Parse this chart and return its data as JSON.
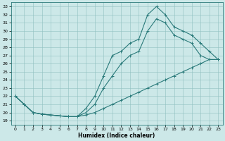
{
  "xlabel": "Humidex (Indice chaleur)",
  "bg_color": "#cce8e8",
  "line_color": "#2a7a7a",
  "xlim": [
    -0.5,
    23.5
  ],
  "ylim": [
    18.5,
    33.5
  ],
  "yticks": [
    19,
    20,
    21,
    22,
    23,
    24,
    25,
    26,
    27,
    28,
    29,
    30,
    31,
    32,
    33
  ],
  "xticks": [
    0,
    1,
    2,
    3,
    4,
    5,
    6,
    7,
    8,
    9,
    10,
    11,
    12,
    13,
    14,
    15,
    16,
    17,
    18,
    19,
    20,
    21,
    22,
    23
  ],
  "curve1_x": [
    0,
    1,
    2,
    3,
    4,
    5,
    6,
    7,
    8,
    9,
    10,
    11,
    12,
    13,
    14,
    15,
    16,
    17,
    18,
    19,
    20,
    21,
    22,
    23
  ],
  "curve1_y": [
    22,
    21,
    20,
    19.8,
    19.7,
    19.6,
    19.5,
    19.5,
    19.7,
    20,
    20.5,
    21,
    21.5,
    22,
    22.5,
    23,
    23.5,
    24,
    24.5,
    25,
    25.5,
    26,
    26.5,
    26.5
  ],
  "curve2_x": [
    0,
    1,
    2,
    3,
    4,
    5,
    6,
    7,
    8,
    9,
    10,
    11,
    12,
    13,
    14,
    15,
    16,
    17,
    18,
    19,
    20,
    21,
    22,
    23
  ],
  "curve2_y": [
    22,
    21,
    20,
    19.8,
    19.7,
    19.6,
    19.5,
    19.5,
    20,
    21,
    23,
    24.5,
    26,
    27,
    27.5,
    30,
    31.5,
    31,
    29.5,
    29,
    28.5,
    27,
    26.5,
    26.5
  ],
  "curve3_x": [
    0,
    1,
    2,
    3,
    4,
    5,
    6,
    7,
    8,
    9,
    10,
    11,
    12,
    13,
    14,
    15,
    16,
    17,
    18,
    19,
    20,
    21,
    22,
    23
  ],
  "curve3_y": [
    22,
    21,
    20,
    19.8,
    19.7,
    19.6,
    19.5,
    19.5,
    20.5,
    22,
    24.5,
    27,
    27.5,
    28.5,
    29,
    32,
    33,
    32,
    30.5,
    30,
    29.5,
    28.5,
    27.5,
    26.5
  ]
}
